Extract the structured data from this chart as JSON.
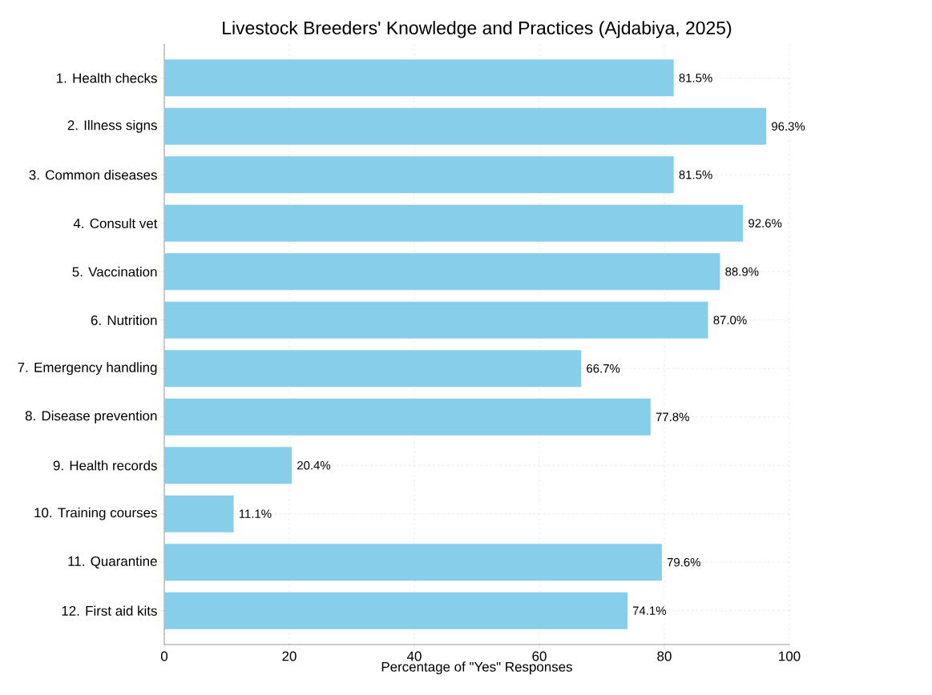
{
  "chart_data": {
    "type": "bar",
    "orientation": "horizontal",
    "title": "Livestock Breeders' Knowledge and Practices (Ajdabiya, 2025)",
    "xlabel": "Percentage of \"Yes\" Responses",
    "categories": [
      "1. Health checks",
      "2. Illness signs",
      "3. Common diseases",
      "4. Consult vet",
      "5. Vaccination",
      "6. Nutrition",
      "7. Emergency handling",
      "8. Disease prevention",
      "9. Health records",
      "10. Training courses",
      "11. Quarantine",
      "12. First aid kits"
    ],
    "values": [
      81.5,
      96.3,
      81.5,
      92.6,
      88.9,
      87.0,
      66.7,
      77.8,
      20.4,
      11.1,
      79.6,
      74.1
    ],
    "value_labels": [
      "81.5%",
      "96.3%",
      "81.5%",
      "92.6%",
      "88.9%",
      "87.0%",
      "66.7%",
      "77.8%",
      "20.4%",
      "11.1%",
      "79.6%",
      "74.1%"
    ],
    "color": "#87ceeb",
    "xlim": [
      0,
      100
    ],
    "xticks": [
      0,
      20,
      40,
      60,
      80,
      100
    ],
    "grid": true
  }
}
